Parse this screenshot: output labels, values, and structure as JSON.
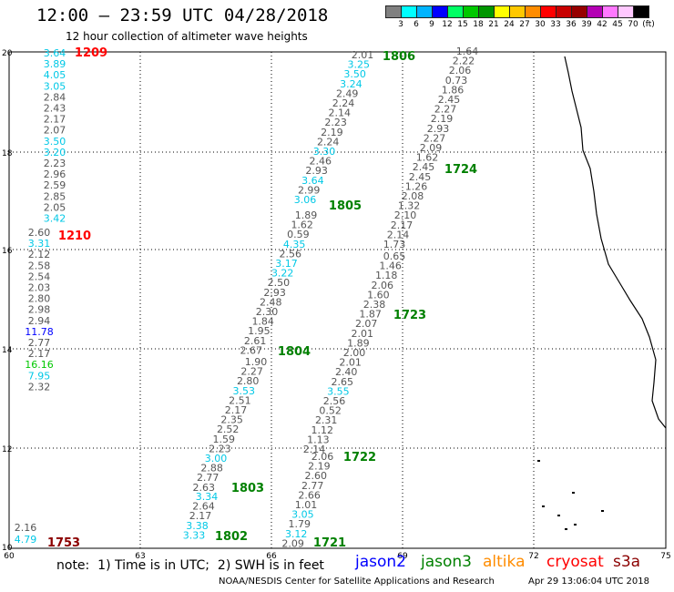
{
  "header": {
    "title": "12:00 – 23:59 UTC 04/28/2018",
    "subtitle": "12 hour collection of altimeter wave heights"
  },
  "colorbar": {
    "colors": [
      "#808080",
      "#00ffff",
      "#00b4ff",
      "#0000ff",
      "#00ff64",
      "#00c800",
      "#009600",
      "#ffff00",
      "#ffc800",
      "#ff8c00",
      "#ff0000",
      "#c80000",
      "#960000",
      "#b400b4",
      "#ff78ff",
      "#ffc8ff",
      "#000000"
    ],
    "labels": [
      "3",
      "6",
      "9",
      "12",
      "15",
      "18",
      "21",
      "24",
      "27",
      "30",
      "33",
      "36",
      "39",
      "42",
      "45",
      "70",
      "(ft)"
    ]
  },
  "axes": {
    "x_ticks": [
      "60",
      "63",
      "66",
      "69",
      "72",
      "75"
    ],
    "y_ticks": [
      "10",
      "12",
      "14",
      "16",
      "18",
      "20"
    ]
  },
  "tracks": [
    {
      "id": "1209",
      "color": "#ff0000",
      "label_color": "#ff0000",
      "values": [
        "3.64",
        "3.89",
        "4.05",
        "3.05",
        "2.84",
        "2.43",
        "2.17",
        "2.07",
        "3.50",
        "3.20",
        "2.23",
        "2.96",
        "2.59",
        "2.85",
        "2.05",
        "3.42"
      ]
    },
    {
      "id": "1210",
      "color": "#ff0000",
      "label_color": "#ff0000",
      "values": [
        "2.60",
        "3.31",
        "2.12",
        "2.58",
        "2.54",
        "2.03",
        "2.80",
        "2.98",
        "2.94",
        "11.78",
        "2.77",
        "2.17",
        "16.16",
        "7.95",
        "2.32"
      ]
    },
    {
      "id": "1753",
      "color": "#8b0000",
      "label_color": "#8b0000",
      "values": [
        "2.16",
        "4.79"
      ]
    },
    {
      "id": "1806",
      "color": "#008000",
      "label_color": "#008000",
      "values": [
        "2.01",
        "3.25",
        "3.50",
        "3.24",
        "2.49",
        "2.24",
        "2.14",
        "2.23",
        "2.19",
        "2.24",
        "3.30",
        "2.46",
        "2.93",
        "3.64",
        "2.99",
        "3.06"
      ]
    },
    {
      "id": "1805",
      "color": "#008000",
      "label_color": "#008000",
      "values": [
        "1.89",
        "1.62",
        "0.59",
        "4.35",
        "2.56",
        "3.17",
        "3.22",
        "2.50",
        "2.93",
        "2.48",
        "2.30",
        "1.84",
        "1.95",
        "2.61",
        "2.67"
      ]
    },
    {
      "id": "1804",
      "color": "#008000",
      "label_color": "#008000",
      "values": [
        "1.90",
        "2.27",
        "2.80",
        "3.53",
        "2.51",
        "2.17",
        "2.35",
        "2.52",
        "1.59",
        "2.23",
        "3.00",
        "2.88",
        "2.77",
        "2.63"
      ]
    },
    {
      "id": "1803",
      "color": "#008000",
      "label_color": "#008000",
      "values": [
        "3.34",
        "2.64",
        "2.17",
        "3.38",
        "3.33"
      ]
    },
    {
      "id": "1802",
      "color": "#008000",
      "label_color": "#008000",
      "values": []
    },
    {
      "id": "1724",
      "color": "#008000",
      "label_color": "#008000",
      "values": [
        "1.64",
        "2.22",
        "2.06",
        "0.73",
        "1.86",
        "2.45",
        "2.27",
        "2.19",
        "2.93",
        "2.27",
        "2.09",
        "1.62",
        "2.45",
        "2.45",
        "1.26",
        "2.08",
        "1.32",
        "2.10",
        "2.17",
        "2.14",
        "1.73"
      ]
    },
    {
      "id": "1723",
      "color": "#008000",
      "label_color": "#008000",
      "values": [
        "0.65",
        "1.46",
        "1.18",
        "2.06",
        "1.60",
        "2.38",
        "1.87",
        "2.07",
        "2.01",
        "1.89",
        "2.00",
        "2.01",
        "2.40",
        "2.65",
        "3.55",
        "2.56",
        "0.52",
        "2.31",
        "1.12",
        "1.13",
        "2.14"
      ]
    },
    {
      "id": "1722",
      "color": "#008000",
      "label_color": "#008000",
      "values": [
        "2.06",
        "2.19",
        "2.60",
        "2.77",
        "2.66",
        "1.01",
        "3.05",
        "1.79",
        "3.12",
        "2.09"
      ]
    },
    {
      "id": "1721",
      "color": "#008000",
      "label_color": "#008000",
      "values": []
    }
  ],
  "footer": {
    "note": "note:  1) Time is in UTC;  2) SWH is in feet",
    "satellites": [
      {
        "name": "jason2",
        "color": "#0000ff"
      },
      {
        "name": "jason3",
        "color": "#008000"
      },
      {
        "name": "altika",
        "color": "#ff8c00"
      },
      {
        "name": "cryosat",
        "color": "#ff0000"
      },
      {
        "name": "s3a",
        "color": "#8b0000"
      }
    ],
    "credit": "NOAA/NESDIS Center for Satellite Applications and Research",
    "timestamp": "Apr 29 13:06:04 UTC 2018"
  }
}
